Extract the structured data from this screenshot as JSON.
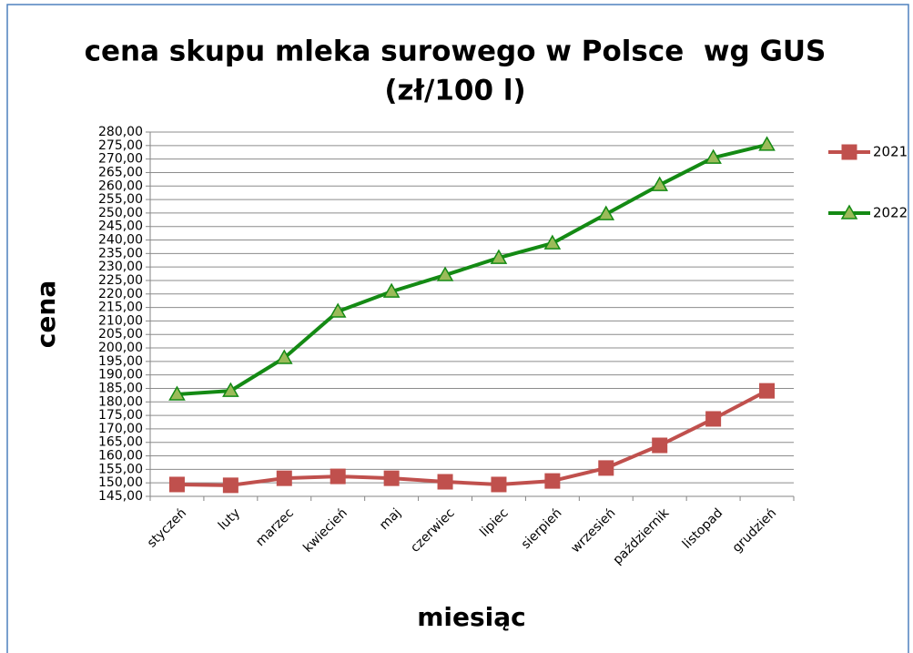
{
  "chart_data": {
    "type": "line",
    "title": [
      "cena skupu mleka surowego w Polsce  wg GUS",
      "(zł/100 l)"
    ],
    "x_label": "miesiąc",
    "y_label": "cena",
    "categories": [
      "styczeń",
      "luty",
      "marzec",
      "kwiecień",
      "maj",
      "czerwiec",
      "lipiec",
      "sierpień",
      "wrzesień",
      "październik",
      "listopad",
      "grudzień"
    ],
    "series": [
      {
        "name": "2021",
        "color": "#c0504d",
        "marker": "square",
        "values": [
          149.4,
          149.1,
          151.7,
          152.4,
          151.7,
          150.4,
          149.4,
          150.7,
          155.5,
          163.9,
          173.7,
          184.1
        ]
      },
      {
        "name": "2022",
        "color": "#148a14",
        "marker": "triangle",
        "values": [
          182.8,
          184.1,
          196.3,
          213.5,
          220.9,
          227.0,
          233.4,
          238.8,
          249.6,
          260.4,
          270.5,
          275.3
        ]
      }
    ],
    "ylim": [
      145,
      280
    ],
    "yticks": [
      {
        "value": 145,
        "label": "145,00"
      },
      {
        "value": 150,
        "label": "150,00"
      },
      {
        "value": 155,
        "label": "155,00"
      },
      {
        "value": 160,
        "label": "160,00"
      },
      {
        "value": 165,
        "label": "165,00"
      },
      {
        "value": 170,
        "label": "170,00"
      },
      {
        "value": 175,
        "label": "175,00"
      },
      {
        "value": 180,
        "label": "180,00"
      },
      {
        "value": 185,
        "label": "185,00"
      },
      {
        "value": 190,
        "label": "190,00"
      },
      {
        "value": 195,
        "label": "195,00"
      },
      {
        "value": 200,
        "label": "200,00"
      },
      {
        "value": 205,
        "label": "205,00"
      },
      {
        "value": 210,
        "label": "210,00"
      },
      {
        "value": 215,
        "label": "215,00"
      },
      {
        "value": 220,
        "label": "220,00"
      },
      {
        "value": 225,
        "label": "225,00"
      },
      {
        "value": 230,
        "label": "230,00"
      },
      {
        "value": 235,
        "label": "235,00"
      },
      {
        "value": 240,
        "label": "240,00"
      },
      {
        "value": 245,
        "label": "245,00"
      },
      {
        "value": 250,
        "label": "250,00"
      },
      {
        "value": 255,
        "label": "255,00"
      },
      {
        "value": 260,
        "label": "260,00"
      },
      {
        "value": 265,
        "label": "265,00"
      },
      {
        "value": 270,
        "label": "270,00"
      },
      {
        "value": 275,
        "label": "275,00"
      },
      {
        "value": 280,
        "label": "280,00"
      }
    ],
    "grid": true,
    "legend": "right"
  }
}
